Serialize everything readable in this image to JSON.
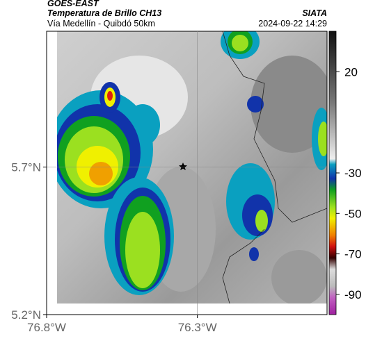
{
  "header": {
    "satellite": "GOES-EAST",
    "product": "Temperatura de Brillo CH13",
    "route": "Vía Medellín - Quibdó 50km",
    "source": "SIATA",
    "datetime": "2024-09-22 14:29"
  },
  "map": {
    "xlim": [
      -76.8,
      -75.87
    ],
    "ylim": [
      5.2,
      6.16
    ],
    "xticks": [
      {
        "value": -76.8,
        "label": "76.8°W"
      },
      {
        "value": -76.3,
        "label": "76.3°W"
      }
    ],
    "yticks": [
      {
        "value": 5.7,
        "label": "5.7°N"
      },
      {
        "value": 5.2,
        "label": "5.2°N"
      }
    ],
    "grid": true
  },
  "colorbar": {
    "lim": [
      40,
      -100
    ],
    "ticks": [
      20,
      -30,
      -50,
      -70,
      -90
    ]
  }
}
